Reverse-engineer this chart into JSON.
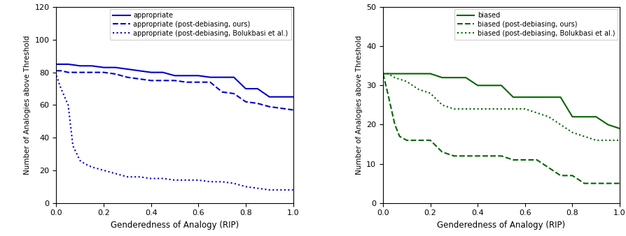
{
  "left": {
    "xlabel": "Genderedness of Analogy (RIP)",
    "ylabel": "Number of Analogies above Threshold",
    "ylim": [
      0,
      120
    ],
    "yticks": [
      0,
      20,
      40,
      60,
      80,
      100,
      120
    ],
    "xlim": [
      0.0,
      1.0
    ],
    "xticks": [
      0.0,
      0.2,
      0.4,
      0.6,
      0.8,
      1.0
    ],
    "color": "#0000cc",
    "lines": {
      "solid": {
        "x": [
          0.0,
          0.02,
          0.05,
          0.1,
          0.15,
          0.2,
          0.25,
          0.3,
          0.35,
          0.4,
          0.45,
          0.5,
          0.55,
          0.6,
          0.65,
          0.7,
          0.75,
          0.8,
          0.85,
          0.9,
          0.95,
          1.0
        ],
        "y": [
          85,
          85,
          85,
          84,
          84,
          83,
          83,
          82,
          81,
          80,
          80,
          78,
          78,
          78,
          77,
          77,
          77,
          70,
          70,
          65,
          65,
          65
        ],
        "label": "appropriate",
        "linestyle": "-"
      },
      "dashed": {
        "x": [
          0.0,
          0.02,
          0.05,
          0.1,
          0.15,
          0.2,
          0.25,
          0.3,
          0.35,
          0.4,
          0.45,
          0.5,
          0.55,
          0.6,
          0.65,
          0.7,
          0.75,
          0.8,
          0.85,
          0.9,
          0.95,
          1.0
        ],
        "y": [
          81,
          81,
          80,
          80,
          80,
          80,
          79,
          77,
          76,
          75,
          75,
          75,
          74,
          74,
          74,
          68,
          67,
          62,
          61,
          59,
          58,
          57
        ],
        "label": "appropriate (post-debiasing, ours)",
        "linestyle": "--"
      },
      "dotted": {
        "x": [
          0.0,
          0.02,
          0.05,
          0.07,
          0.1,
          0.12,
          0.15,
          0.2,
          0.25,
          0.3,
          0.35,
          0.4,
          0.45,
          0.5,
          0.55,
          0.6,
          0.65,
          0.7,
          0.75,
          0.8,
          0.85,
          0.9,
          0.95,
          1.0
        ],
        "y": [
          78,
          70,
          60,
          35,
          26,
          24,
          22,
          20,
          18,
          16,
          16,
          15,
          15,
          14,
          14,
          14,
          13,
          13,
          12,
          10,
          9,
          8,
          8,
          8
        ],
        "label": "appropriate (post-debiasing, Bolukbasi et al.)",
        "linestyle": ":"
      }
    }
  },
  "right": {
    "xlabel": "Genderedness of Analogy (RIP)",
    "ylabel": "Number of Analogies above Threshold",
    "ylim": [
      0,
      50
    ],
    "yticks": [
      0,
      10,
      20,
      30,
      40,
      50
    ],
    "xlim": [
      0.0,
      1.0
    ],
    "xticks": [
      0.0,
      0.2,
      0.4,
      0.6,
      0.8,
      1.0
    ],
    "color": "#006600",
    "lines": {
      "solid": {
        "x": [
          0.0,
          0.02,
          0.05,
          0.1,
          0.15,
          0.2,
          0.25,
          0.3,
          0.35,
          0.4,
          0.45,
          0.5,
          0.55,
          0.6,
          0.65,
          0.7,
          0.75,
          0.8,
          0.85,
          0.9,
          0.95,
          1.0
        ],
        "y": [
          33,
          33,
          33,
          33,
          33,
          33,
          32,
          32,
          32,
          30,
          30,
          30,
          27,
          27,
          27,
          27,
          27,
          22,
          22,
          22,
          20,
          19
        ],
        "label": "biased",
        "linestyle": "-"
      },
      "dashed": {
        "x": [
          0.0,
          0.02,
          0.05,
          0.07,
          0.1,
          0.15,
          0.2,
          0.25,
          0.3,
          0.35,
          0.4,
          0.45,
          0.5,
          0.55,
          0.6,
          0.65,
          0.7,
          0.75,
          0.8,
          0.85,
          0.9,
          0.95,
          1.0
        ],
        "y": [
          33,
          28,
          20,
          17,
          16,
          16,
          16,
          13,
          12,
          12,
          12,
          12,
          12,
          11,
          11,
          11,
          9,
          7,
          7,
          5,
          5,
          5,
          5
        ],
        "label": "biased (post-debiasing, ours)",
        "linestyle": "--"
      },
      "dotted": {
        "x": [
          0.0,
          0.02,
          0.05,
          0.1,
          0.15,
          0.2,
          0.25,
          0.3,
          0.35,
          0.4,
          0.45,
          0.5,
          0.55,
          0.6,
          0.65,
          0.7,
          0.75,
          0.8,
          0.85,
          0.9,
          0.95,
          1.0
        ],
        "y": [
          33,
          33,
          32,
          31,
          29,
          28,
          25,
          24,
          24,
          24,
          24,
          24,
          24,
          24,
          23,
          22,
          20,
          18,
          17,
          16,
          16,
          16
        ],
        "label": "biased (post-debiasing, Bolukbasi et al.)",
        "linestyle": ":"
      }
    }
  }
}
